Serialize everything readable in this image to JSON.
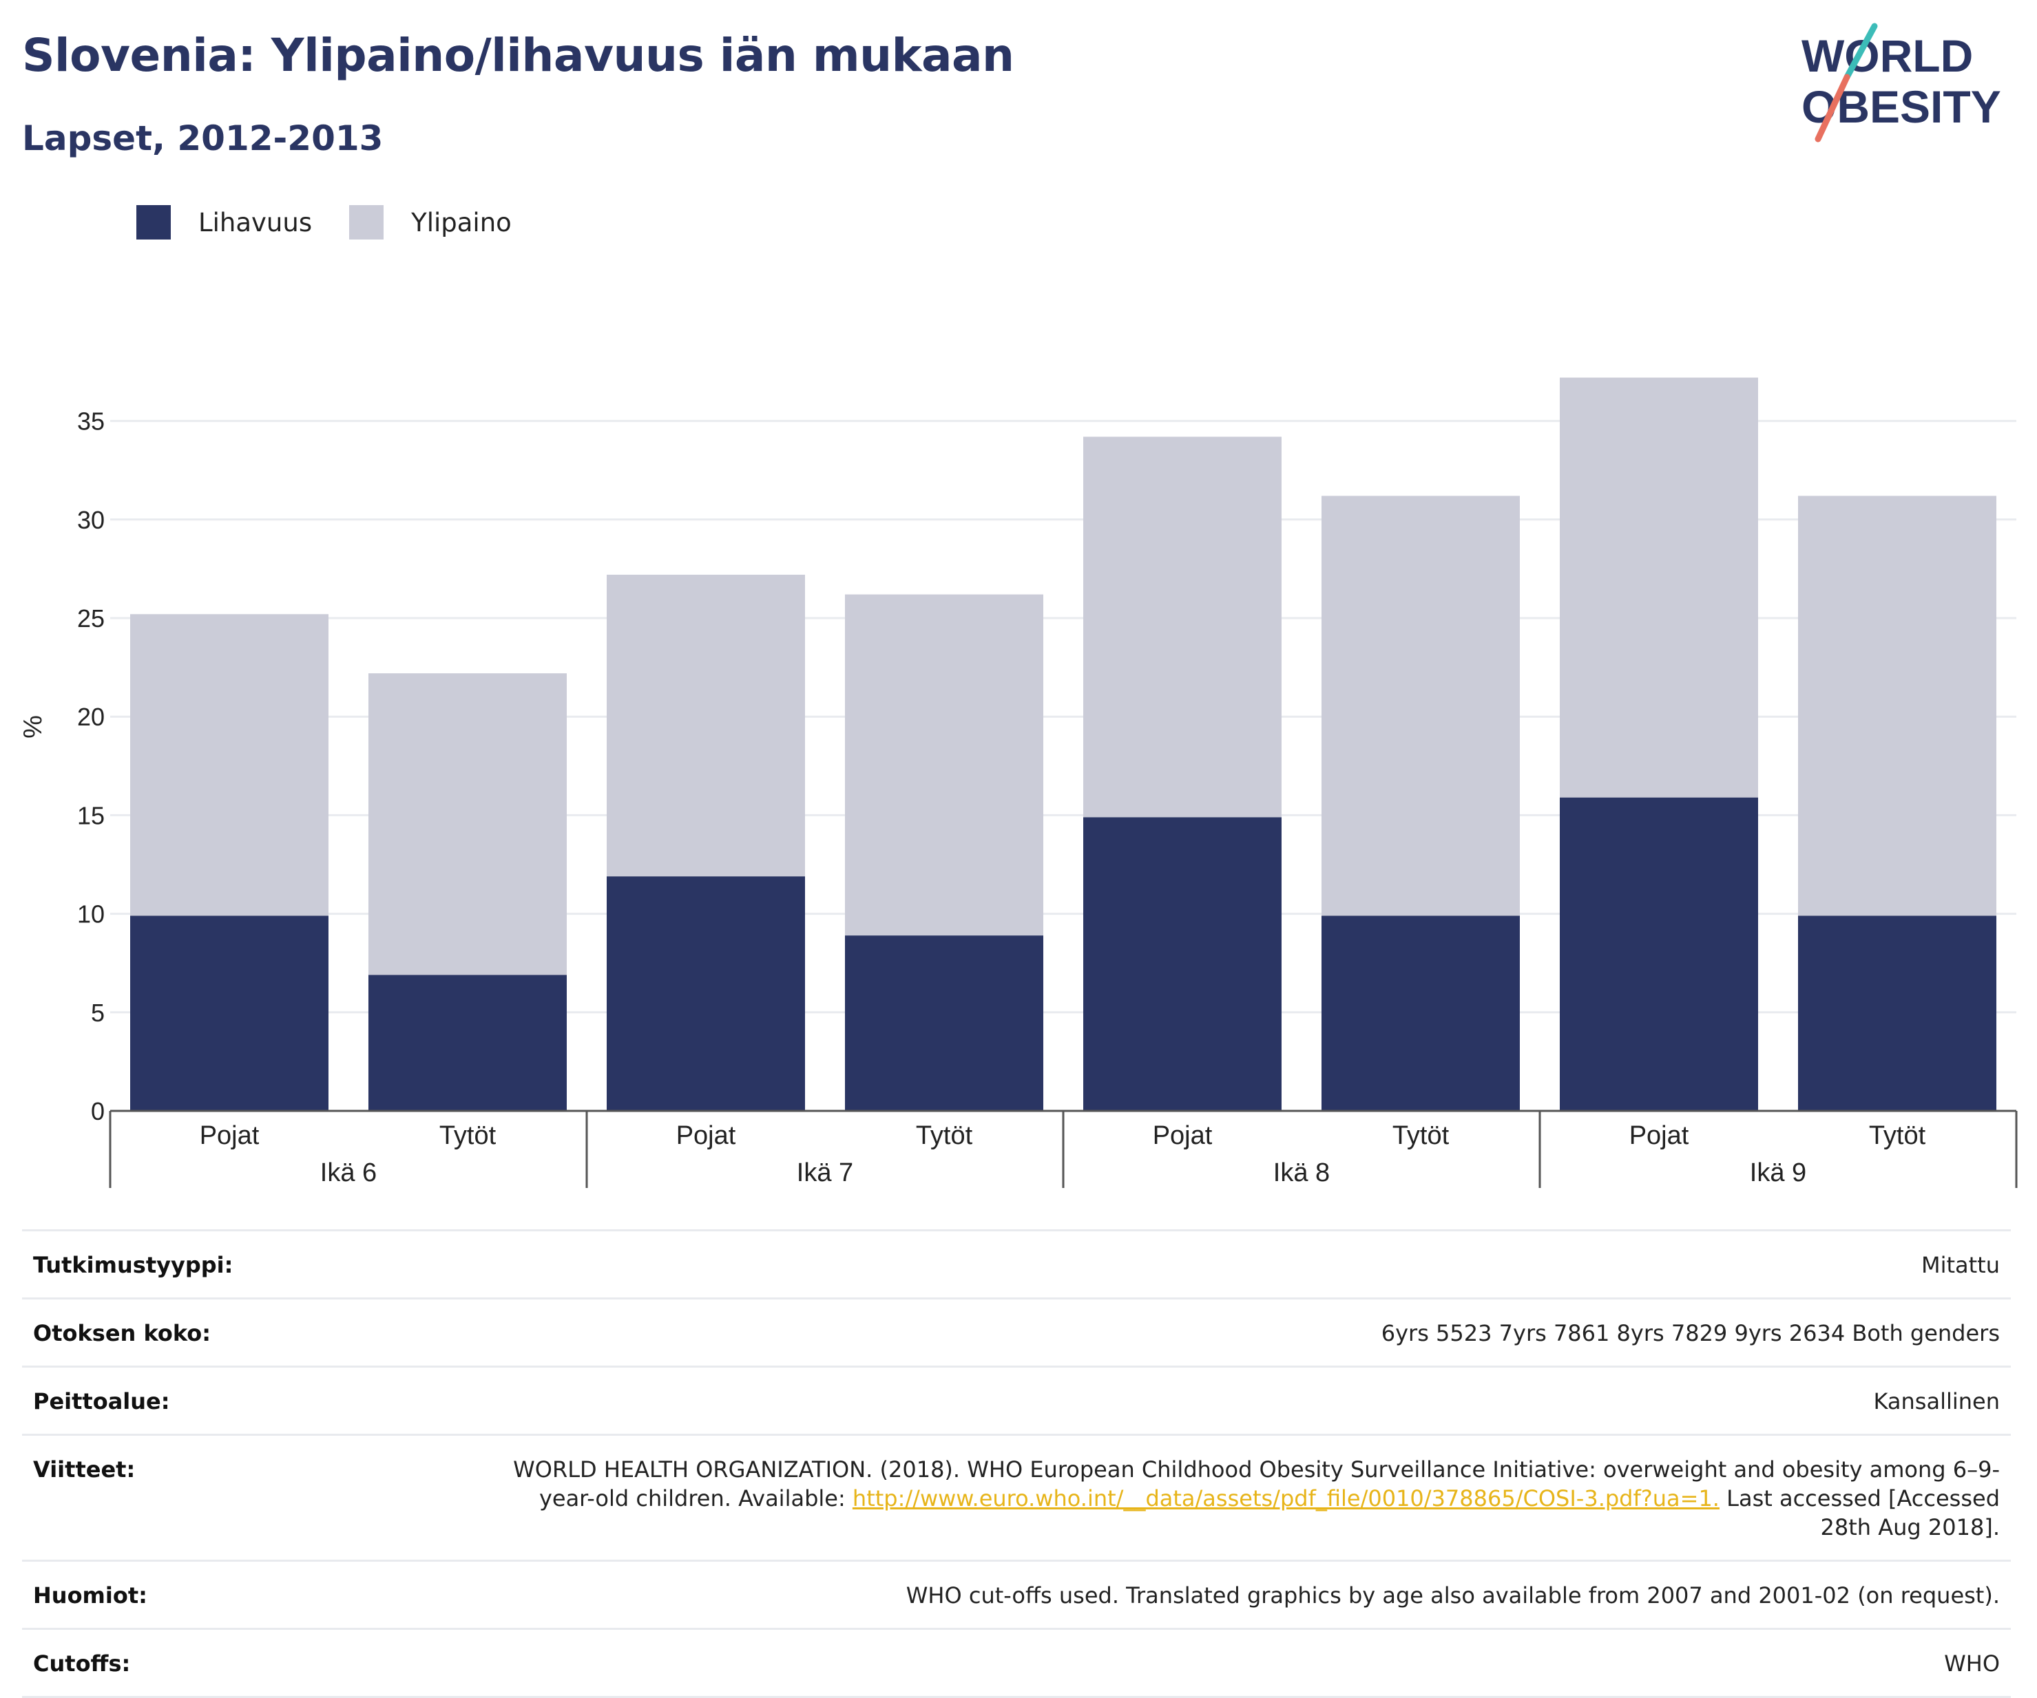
{
  "header": {
    "title": "Slovenia: Ylipaino/lihavuus iän mukaan",
    "subtitle": "Lapset, 2012-2013"
  },
  "logo": {
    "line1": "WORLD",
    "line2": "OBESITY"
  },
  "colors": {
    "obesity": "#2a3563",
    "overweight": "#cbccd8",
    "title": "#2a3563",
    "link": "#e7b419",
    "logo_teal": "#3cbcb8",
    "logo_coral": "#e8705f"
  },
  "chart_data": {
    "type": "bar",
    "stacked": true,
    "ylabel": "%",
    "ylim": [
      0,
      37.5
    ],
    "yticks": [
      0,
      5,
      10,
      15,
      20,
      25,
      30,
      35
    ],
    "grid": true,
    "legend_position": "top-left",
    "groups": [
      "Ikä 6",
      "Ikä 7",
      "Ikä 8",
      "Ikä 9"
    ],
    "categories": [
      "Pojat",
      "Tytöt",
      "Pojat",
      "Tytöt",
      "Pojat",
      "Tytöt",
      "Pojat",
      "Tytöt"
    ],
    "series": [
      {
        "name": "Lihavuus",
        "values": [
          9.9,
          6.9,
          11.9,
          8.9,
          14.9,
          9.9,
          15.9,
          9.9
        ]
      },
      {
        "name": "Ylipaino",
        "values": [
          15.3,
          15.3,
          15.3,
          17.3,
          19.3,
          21.3,
          21.3,
          21.3
        ]
      }
    ]
  },
  "info": [
    {
      "label": "Tutkimustyyppi:",
      "value": "Mitattu"
    },
    {
      "label": "Otoksen koko:",
      "value": "6yrs 5523 7yrs 7861 8yrs 7829 9yrs 2634 Both genders"
    },
    {
      "label": "Peittoalue:",
      "value": "Kansallinen"
    },
    {
      "label": "Viitteet:",
      "value_before": "WORLD HEALTH ORGANIZATION. (2018). WHO European Childhood Obesity Surveillance Initiative: overweight and obesity among 6–9-year-old children. Available: ",
      "link": "http://www.euro.who.int/__data/assets/pdf_file/0010/378865/COSI-3.pdf?ua=1.",
      "value_after": " Last accessed [Accessed 28th Aug 2018]."
    },
    {
      "label": "Huomiot:",
      "value": "WHO cut-offs used. Translated graphics by age also available from 2007 and 2001-02 (on request)."
    },
    {
      "label": "Cutoffs:",
      "value": "WHO"
    }
  ]
}
